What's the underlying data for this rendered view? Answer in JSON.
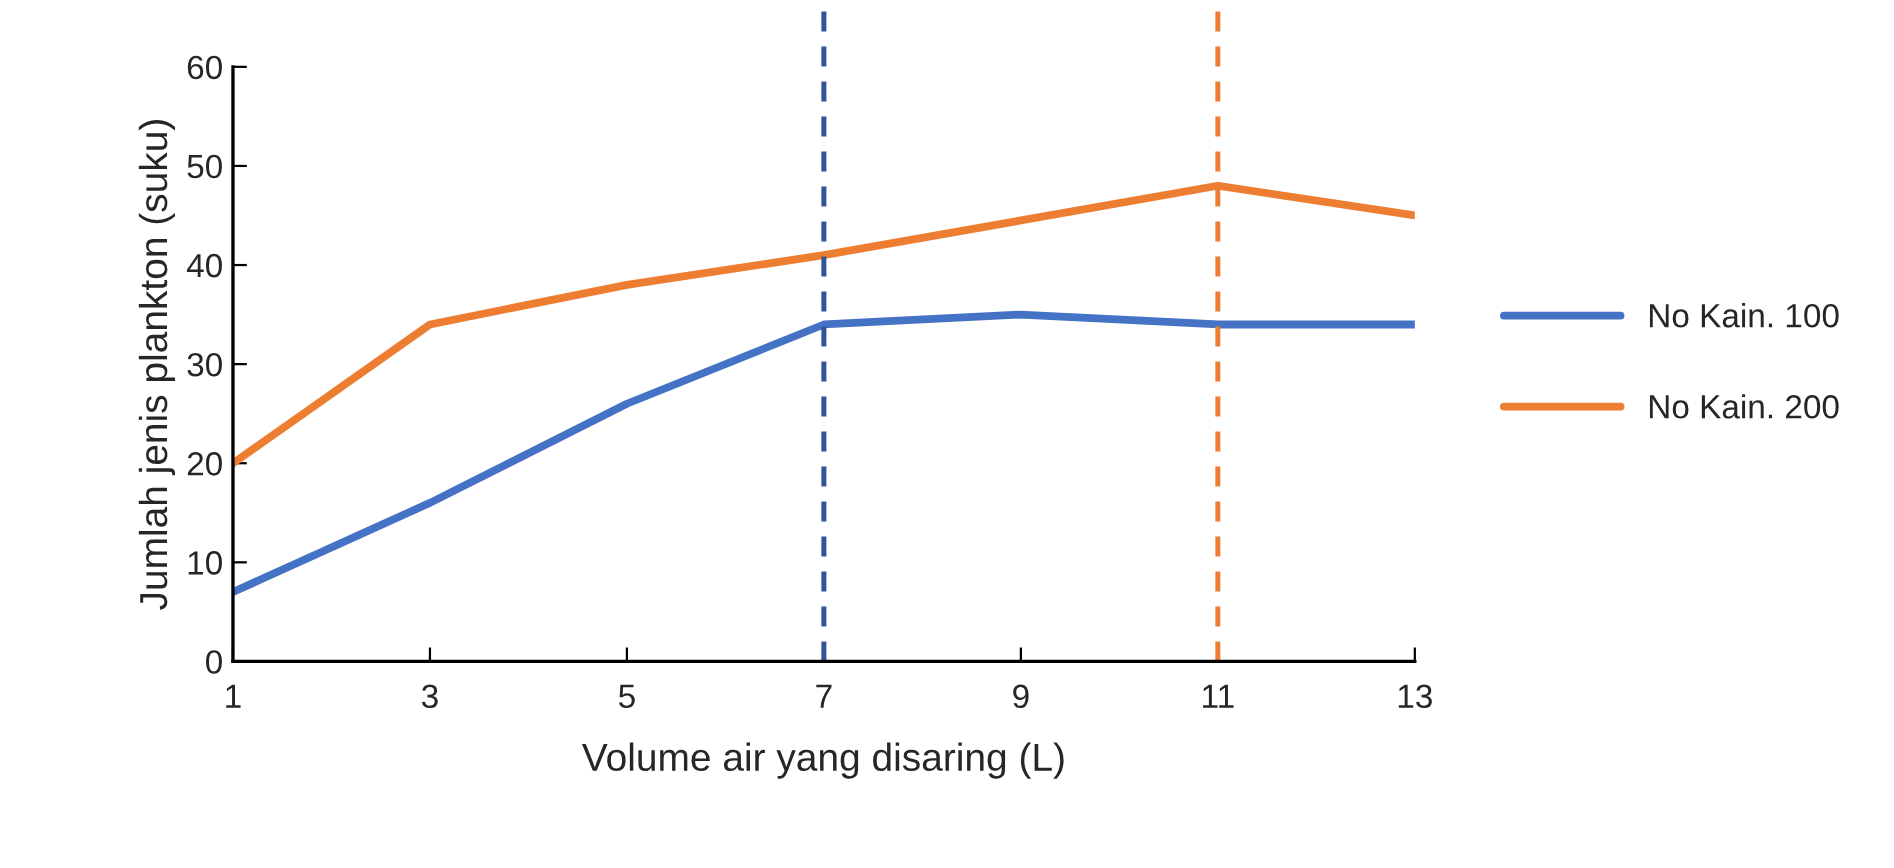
{
  "chart_data": {
    "type": "line",
    "xlabel": "Volume air yang disaring (L)",
    "ylabel": "Jumlah jenis plankton (suku)",
    "x": [
      1,
      3,
      5,
      7,
      9,
      11,
      13
    ],
    "series": [
      {
        "name": "No Kain. 100",
        "color": "#4472c4",
        "values": [
          7,
          16,
          26,
          34,
          35,
          34,
          34
        ]
      },
      {
        "name": "No Kain. 200",
        "color": "#ed7d31",
        "values": [
          20,
          34,
          38,
          41,
          44.5,
          48,
          45
        ]
      }
    ],
    "xlim": [
      1,
      13
    ],
    "xticks": [
      1,
      3,
      5,
      7,
      9,
      11,
      13
    ],
    "ylim": [
      0,
      60
    ],
    "yticks": [
      0,
      10,
      20,
      30,
      40,
      50,
      60
    ],
    "ref_lines": [
      {
        "axis": "x",
        "value": 7,
        "label": null,
        "color": "#2f5597",
        "line_style": "dashed"
      },
      {
        "axis": "x",
        "value": 11,
        "label": null,
        "color": "#ed7d31",
        "line_style": "dashed"
      }
    ],
    "grid": false,
    "legend": "right",
    "marker": "none",
    "line_style": "solid"
  }
}
